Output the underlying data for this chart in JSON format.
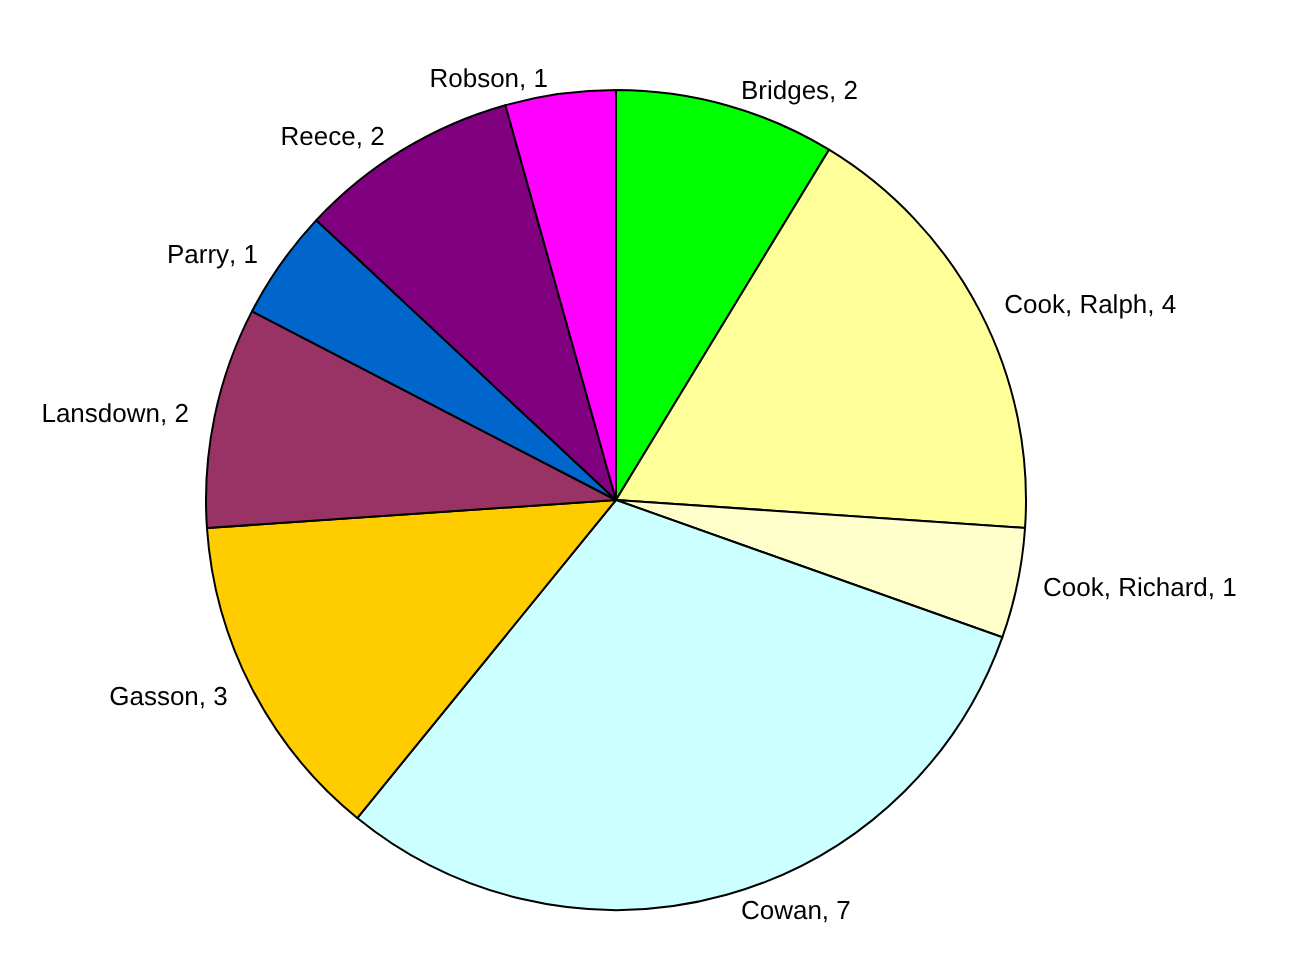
{
  "chart_data": {
    "type": "pie",
    "categories": [
      "Bridges",
      "Cook, Ralph",
      "Cook, Richard",
      "Cowan",
      "Gasson",
      "Lansdown",
      "Parry",
      "Reece",
      "Robson"
    ],
    "values": [
      2,
      4,
      1,
      7,
      3,
      2,
      1,
      2,
      1
    ],
    "colors": [
      "#00ff00",
      "#ffff99",
      "#ffffcc",
      "#ccffff",
      "#ffcc00",
      "#993366",
      "#0066cc",
      "#800080",
      "#ff00ff"
    ],
    "value_labels": [
      ", 2",
      ", 4",
      ", 1",
      ", 7",
      ", 3",
      ", 2",
      ", 1",
      ", 2",
      ", 1"
    ],
    "legend": false
  }
}
